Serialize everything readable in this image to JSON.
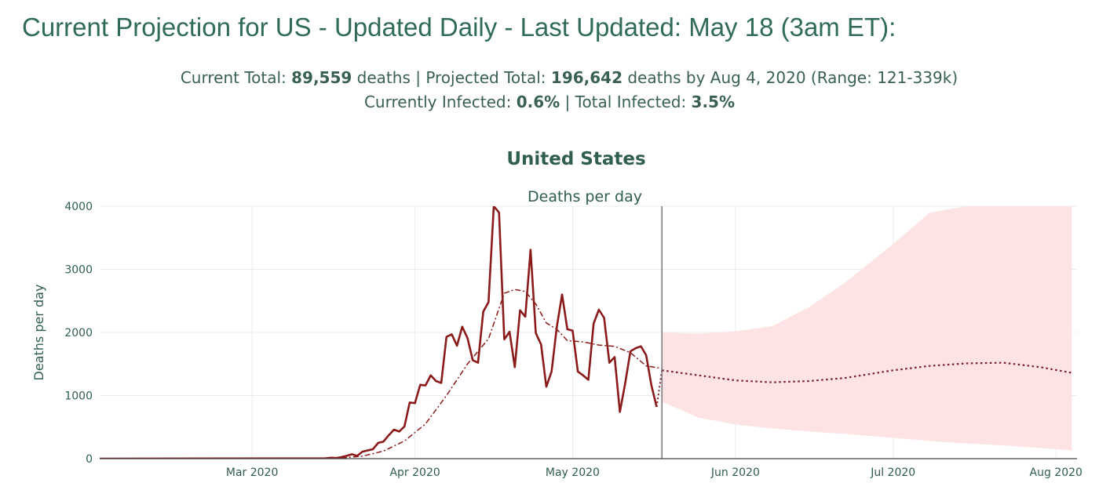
{
  "headline": "Current Projection for US - Updated Daily - Last Updated: May 18 (3am ET):",
  "summary": {
    "current_total_label": "Current Total: ",
    "current_total_value": "89,559",
    "current_total_suffix": " deaths | Projected Total: ",
    "projected_total_value": "196,642",
    "projected_total_suffix": " deaths by Aug 4, 2020 (Range: 121-339k)",
    "currently_infected_label": "Currently Infected: ",
    "currently_infected_value": "0.6%",
    "total_infected_label": " | Total Infected: ",
    "total_infected_value": "3.5%"
  },
  "colors": {
    "actual": "#8b1a1a",
    "projection": "#7a1f2b",
    "band": "#fde3e3",
    "grid": "#e9ecef",
    "divider": "#777777"
  },
  "chart_data": {
    "type": "line",
    "title": "United States",
    "subtitle": "Deaths per day",
    "ylabel": "Deaths per day",
    "xlabel": "",
    "ylim": [
      0,
      4000
    ],
    "xlim": [
      "2020-02-01",
      "2020-08-05"
    ],
    "y_ticks": [
      0,
      1000,
      2000,
      3000,
      4000
    ],
    "x_ticks": [
      {
        "date": "2020-03-01",
        "label": "Mar 2020"
      },
      {
        "date": "2020-04-01",
        "label": "Apr 2020"
      },
      {
        "date": "2020-05-01",
        "label": "May 2020"
      },
      {
        "date": "2020-06-01",
        "label": "Jun 2020"
      },
      {
        "date": "2020-07-01",
        "label": "Jul 2020"
      },
      {
        "date": "2020-08-01",
        "label": "Aug 2020"
      }
    ],
    "grid": true,
    "last_updated_marker": "2020-05-18",
    "actual_daily": [
      [
        "2020-02-01",
        0
      ],
      [
        "2020-03-15",
        5
      ],
      [
        "2020-03-16",
        15
      ],
      [
        "2020-03-17",
        10
      ],
      [
        "2020-03-18",
        25
      ],
      [
        "2020-03-19",
        45
      ],
      [
        "2020-03-20",
        70
      ],
      [
        "2020-03-21",
        45
      ],
      [
        "2020-03-22",
        110
      ],
      [
        "2020-03-23",
        130
      ],
      [
        "2020-03-24",
        150
      ],
      [
        "2020-03-25",
        250
      ],
      [
        "2020-03-26",
        270
      ],
      [
        "2020-03-27",
        370
      ],
      [
        "2020-03-28",
        460
      ],
      [
        "2020-03-29",
        430
      ],
      [
        "2020-03-30",
        510
      ],
      [
        "2020-03-31",
        890
      ],
      [
        "2020-04-01",
        880
      ],
      [
        "2020-04-02",
        1170
      ],
      [
        "2020-04-03",
        1160
      ],
      [
        "2020-04-04",
        1320
      ],
      [
        "2020-04-05",
        1230
      ],
      [
        "2020-04-06",
        1200
      ],
      [
        "2020-04-07",
        1930
      ],
      [
        "2020-04-08",
        1970
      ],
      [
        "2020-04-09",
        1790
      ],
      [
        "2020-04-10",
        2090
      ],
      [
        "2020-04-11",
        1910
      ],
      [
        "2020-04-12",
        1560
      ],
      [
        "2020-04-13",
        1520
      ],
      [
        "2020-04-14",
        2330
      ],
      [
        "2020-04-15",
        2480
      ],
      [
        "2020-04-16",
        4300
      ],
      [
        "2020-04-17",
        3900
      ],
      [
        "2020-04-18",
        1890
      ],
      [
        "2020-04-19",
        2010
      ],
      [
        "2020-04-20",
        1450
      ],
      [
        "2020-04-21",
        2350
      ],
      [
        "2020-04-22",
        2250
      ],
      [
        "2020-04-23",
        3310
      ],
      [
        "2020-04-24",
        1990
      ],
      [
        "2020-04-25",
        1810
      ],
      [
        "2020-04-26",
        1140
      ],
      [
        "2020-04-27",
        1380
      ],
      [
        "2020-04-28",
        2090
      ],
      [
        "2020-04-29",
        2600
      ],
      [
        "2020-04-30",
        2050
      ],
      [
        "2020-05-01",
        2030
      ],
      [
        "2020-05-02",
        1380
      ],
      [
        "2020-05-03",
        1320
      ],
      [
        "2020-05-04",
        1250
      ],
      [
        "2020-05-05",
        2140
      ],
      [
        "2020-05-06",
        2360
      ],
      [
        "2020-05-07",
        2230
      ],
      [
        "2020-05-08",
        1520
      ],
      [
        "2020-05-09",
        1610
      ],
      [
        "2020-05-10",
        740
      ],
      [
        "2020-05-11",
        1190
      ],
      [
        "2020-05-12",
        1700
      ],
      [
        "2020-05-13",
        1750
      ],
      [
        "2020-05-14",
        1780
      ],
      [
        "2020-05-15",
        1640
      ],
      [
        "2020-05-16",
        1160
      ],
      [
        "2020-05-17",
        820
      ]
    ],
    "moving_average": [
      [
        "2020-03-18",
        10
      ],
      [
        "2020-03-22",
        40
      ],
      [
        "2020-03-26",
        120
      ],
      [
        "2020-03-30",
        280
      ],
      [
        "2020-04-03",
        550
      ],
      [
        "2020-04-07",
        1000
      ],
      [
        "2020-04-11",
        1500
      ],
      [
        "2020-04-15",
        1900
      ],
      [
        "2020-04-18",
        2620
      ],
      [
        "2020-04-20",
        2680
      ],
      [
        "2020-04-22",
        2650
      ],
      [
        "2020-04-24",
        2450
      ],
      [
        "2020-04-26",
        2150
      ],
      [
        "2020-04-28",
        2050
      ],
      [
        "2020-04-30",
        1870
      ],
      [
        "2020-05-03",
        1850
      ],
      [
        "2020-05-06",
        1800
      ],
      [
        "2020-05-09",
        1780
      ],
      [
        "2020-05-12",
        1680
      ],
      [
        "2020-05-15",
        1470
      ],
      [
        "2020-05-18",
        1430
      ]
    ],
    "projection": [
      [
        "2020-05-18",
        1400
      ],
      [
        "2020-05-25",
        1320
      ],
      [
        "2020-06-01",
        1240
      ],
      [
        "2020-06-08",
        1210
      ],
      [
        "2020-06-15",
        1230
      ],
      [
        "2020-06-22",
        1280
      ],
      [
        "2020-07-01",
        1400
      ],
      [
        "2020-07-08",
        1470
      ],
      [
        "2020-07-15",
        1510
      ],
      [
        "2020-07-22",
        1520
      ],
      [
        "2020-07-29",
        1450
      ],
      [
        "2020-08-04",
        1360
      ]
    ],
    "projection_band": [
      [
        "2020-05-18",
        900,
        2000
      ],
      [
        "2020-05-25",
        650,
        1980
      ],
      [
        "2020-06-01",
        540,
        2020
      ],
      [
        "2020-06-08",
        480,
        2100
      ],
      [
        "2020-06-15",
        430,
        2400
      ],
      [
        "2020-06-22",
        390,
        2800
      ],
      [
        "2020-07-01",
        330,
        3400
      ],
      [
        "2020-07-08",
        280,
        3900
      ],
      [
        "2020-07-15",
        240,
        4000
      ],
      [
        "2020-07-22",
        210,
        4000
      ],
      [
        "2020-07-29",
        170,
        4000
      ],
      [
        "2020-08-04",
        130,
        4000
      ]
    ]
  }
}
